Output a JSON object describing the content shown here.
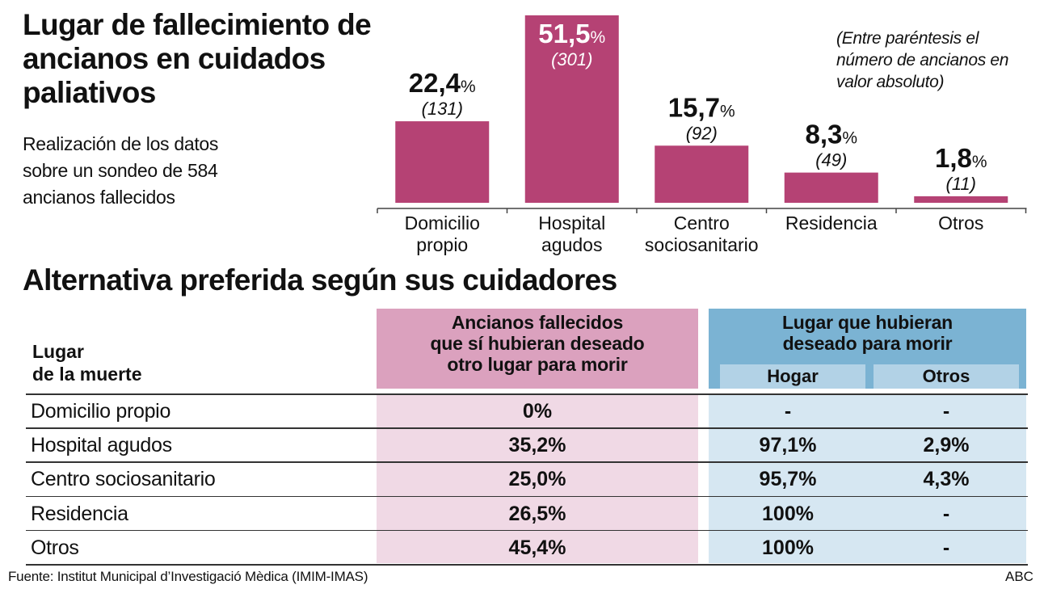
{
  "title": "Lugar de fallecimiento de ancianos en cuidados paliativos",
  "subtitle": "Realización de los datos sobre un sondeo de 584 ancianos fallecidos",
  "note": "(Entre paréntesis el número de ancianos en valor absoluto)",
  "colors": {
    "bar": "#B54274",
    "pink_header": "#DBA1BE",
    "pink_body": "#F0D9E5",
    "blue_header": "#7BB3D3",
    "blue_sub": "#B2D2E6",
    "blue_body": "#D6E7F2"
  },
  "chart_data": {
    "type": "bar",
    "title": "Lugar de fallecimiento de ancianos en cuidados paliativos",
    "xlabel": "",
    "ylabel": "",
    "unit": "%",
    "ylim": [
      0,
      51.5
    ],
    "grid": false,
    "categories": [
      {
        "lines": [
          "Domicilio",
          "propio"
        ]
      },
      {
        "lines": [
          "Hospital",
          "agudos"
        ]
      },
      {
        "lines": [
          "Centro",
          "sociosanitario"
        ]
      },
      {
        "lines": [
          "Residencia"
        ]
      },
      {
        "lines": [
          "Otros"
        ]
      }
    ],
    "values": [
      22.4,
      51.5,
      15.7,
      8.3,
      1.8
    ],
    "value_labels": [
      "22,4",
      "51,5",
      "15,7",
      "8,3",
      "1,8"
    ],
    "counts": [
      131,
      301,
      92,
      49,
      11
    ],
    "count_labels": [
      "(131)",
      "(301)",
      "(92)",
      "(49)",
      "(11)"
    ],
    "pct_symbol": "%",
    "label_inside_bar": [
      false,
      true,
      false,
      false,
      false
    ]
  },
  "table": {
    "title": "Alternativa preferida según sus cuidadores",
    "row_header": [
      "Lugar",
      "de la muerte"
    ],
    "col1_header": [
      "Ancianos fallecidos",
      "que sí hubieran deseado",
      "otro lugar para morir"
    ],
    "col2_header": [
      "Lugar que hubieran",
      "deseado para morir"
    ],
    "col2_sub": [
      "Hogar",
      "Otros"
    ],
    "rows": [
      {
        "place": "Domicilio propio",
        "other_place": "0%",
        "hogar": "-",
        "otros": "-"
      },
      {
        "place": "Hospital agudos",
        "other_place": "35,2%",
        "hogar": "97,1%",
        "otros": "2,9%"
      },
      {
        "place": "Centro sociosanitario",
        "other_place": "25,0%",
        "hogar": "95,7%",
        "otros": "4,3%"
      },
      {
        "place": "Residencia",
        "other_place": "26,5%",
        "hogar": "100%",
        "otros": "-"
      },
      {
        "place": "Otros",
        "other_place": "45,4%",
        "hogar": "100%",
        "otros": "-"
      }
    ]
  },
  "footer": {
    "source": "Fuente: Institut Municipal d’Investigació Mèdica (IMIM-IMAS)",
    "brand": "ABC"
  }
}
